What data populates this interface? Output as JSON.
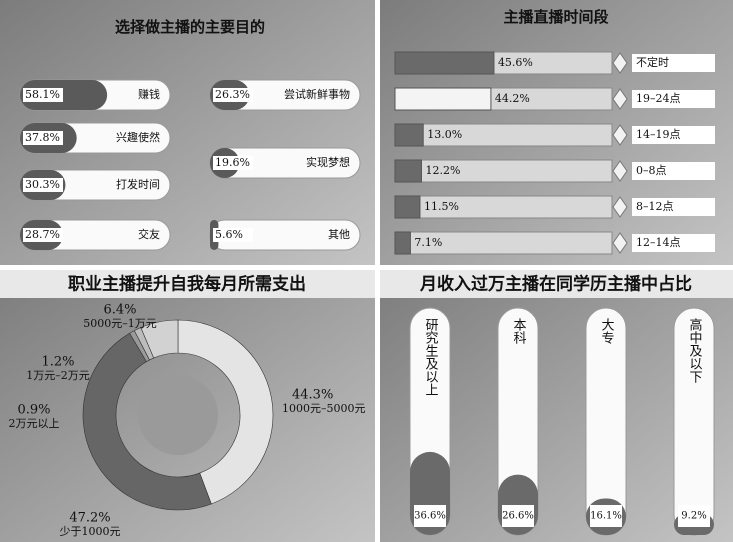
{
  "chart_data": [
    {
      "type": "bar",
      "orientation": "horizontal",
      "title": "选择做主播的主要目的",
      "categories": [
        "赚钱",
        "兴趣使然",
        "打发时间",
        "交友",
        "尝试新鲜事物",
        "实现梦想",
        "其他"
      ],
      "values": [
        58.1,
        37.8,
        30.3,
        28.7,
        26.3,
        19.6,
        5.6
      ],
      "value_labels": [
        "58.1%",
        "37.8%",
        "30.3%",
        "28.7%",
        "26.3%",
        "19.6%",
        "5.6%"
      ],
      "xlim": [
        0,
        100
      ],
      "color": "#5a5a5a"
    },
    {
      "type": "bar",
      "orientation": "horizontal",
      "title": "主播直播时间段",
      "categories": [
        "不定时",
        "19–24点",
        "14–19点",
        "0–8点",
        "8–12点",
        "12–14点"
      ],
      "values": [
        45.6,
        44.2,
        13.0,
        12.2,
        11.5,
        7.1
      ],
      "value_labels": [
        "45.6%",
        "44.2%",
        "13.0%",
        "12.2%",
        "11.5%",
        "7.1%"
      ],
      "xlim": [
        0,
        100
      ],
      "color": "#6a6a6a"
    },
    {
      "type": "pie",
      "donut": true,
      "title": "职业主播提升自我每月所需支出",
      "categories": [
        "1000元–5000元",
        "少于1000元",
        "2万元以上",
        "1万元–2万元",
        "5000元–1万元"
      ],
      "values": [
        44.3,
        47.2,
        0.9,
        1.2,
        6.4
      ],
      "value_labels": [
        "44.3%",
        "47.2%",
        "0.9%",
        "1.2%",
        "6.4%"
      ],
      "colors": [
        "#e4e4e4",
        "#666666",
        "#9a9a9a",
        "#bcbcbc",
        "#d2d2d2"
      ]
    },
    {
      "type": "bar",
      "orientation": "vertical",
      "title": "月收入过万主播在同学历主播中占比",
      "categories": [
        "研究生及以上",
        "本科",
        "大专",
        "高中及以下"
      ],
      "values": [
        36.6,
        26.6,
        16.1,
        9.2
      ],
      "value_labels": [
        "36.6%",
        "26.6%",
        "16.1%",
        "9.2%"
      ],
      "ylim": [
        0,
        100
      ],
      "color": "#6a6a6a"
    }
  ]
}
